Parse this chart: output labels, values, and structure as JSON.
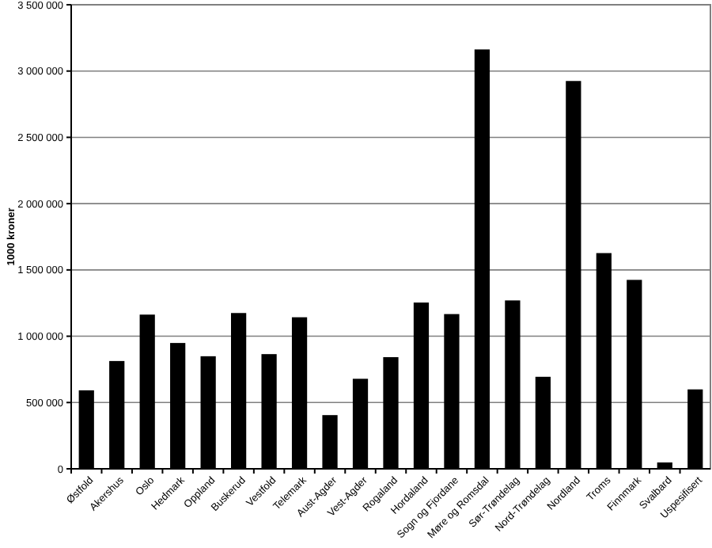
{
  "chart_data": {
    "type": "bar",
    "ylabel": "1000 kroner",
    "categories": [
      "Østfold",
      "Akershus",
      "Oslo",
      "Hedmark",
      "Oppland",
      "Buskerud",
      "Vestfold",
      "Telemark",
      "Aust-Agder",
      "Vest-Agder",
      "Rogaland",
      "Hordaland",
      "Sogn og Fjordane",
      "Møre og Romsdal",
      "Sør-Trøndelag",
      "Nord-Trøndelag",
      "Nordland",
      "Troms",
      "Finnmark",
      "Svalbard",
      "Uspesifisert"
    ],
    "values": [
      592000,
      813000,
      1163000,
      949000,
      849000,
      1175000,
      865000,
      1143000,
      405000,
      679000,
      842000,
      1254000,
      1167000,
      3163000,
      1270000,
      694000,
      2925000,
      1627000,
      1425000,
      48000,
      599000
    ],
    "color": "#000000",
    "ylim": [
      0,
      3500000
    ],
    "yticks": [
      {
        "value": 0,
        "label": "0"
      },
      {
        "value": 500000,
        "label": "500 000"
      },
      {
        "value": 1000000,
        "label": "1 000 000"
      },
      {
        "value": 1500000,
        "label": "1 500 000"
      },
      {
        "value": 2000000,
        "label": "2 000 000"
      },
      {
        "value": 2500000,
        "label": "2 500 000"
      },
      {
        "value": 3000000,
        "label": "3 000 000"
      },
      {
        "value": 3500000,
        "label": "3 500 000"
      }
    ],
    "grid": "y"
  }
}
